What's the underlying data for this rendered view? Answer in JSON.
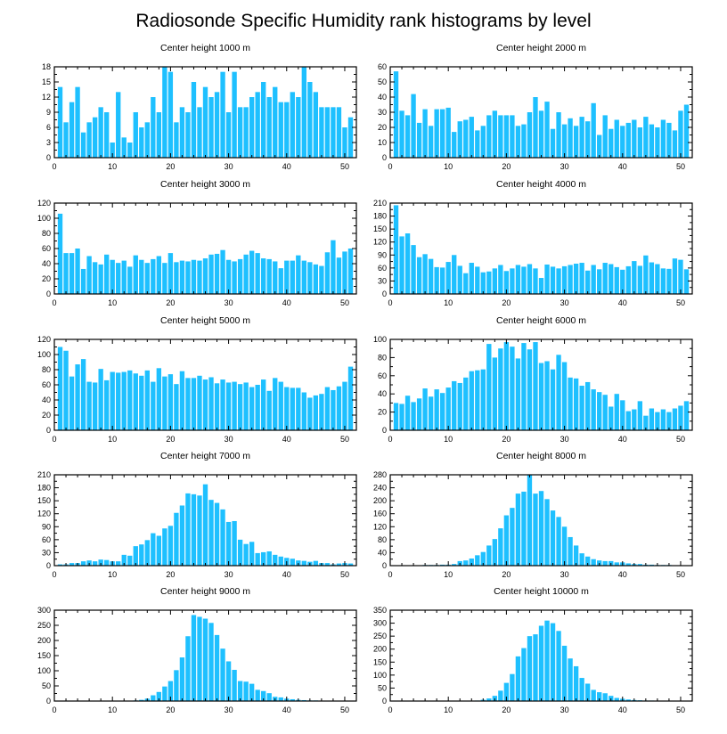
{
  "title": "Radiosonde Specific Humidity rank histograms by level",
  "colors": {
    "bar": "#1ec0ff",
    "axis": "#000000",
    "background": "#ffffff"
  },
  "chart_data": [
    {
      "type": "bar",
      "title": "Center height 1000 m",
      "xlim": [
        0,
        52
      ],
      "ylim": [
        0,
        18
      ],
      "xticks": [
        0,
        10,
        20,
        30,
        40,
        50
      ],
      "yticks": [
        0,
        3,
        6,
        9,
        12,
        15,
        18
      ],
      "categories": [
        1,
        2,
        3,
        4,
        5,
        6,
        7,
        8,
        9,
        10,
        11,
        12,
        13,
        14,
        15,
        16,
        17,
        18,
        19,
        20,
        21,
        22,
        23,
        24,
        25,
        26,
        27,
        28,
        29,
        30,
        31,
        32,
        33,
        34,
        35,
        36,
        37,
        38,
        39,
        40,
        41,
        42,
        43,
        44,
        45,
        46,
        47,
        48,
        49,
        50,
        51
      ],
      "values": [
        14,
        7,
        11,
        14,
        5,
        7,
        8,
        10,
        9,
        3,
        13,
        4,
        3,
        9,
        6,
        7,
        12,
        9,
        18,
        17,
        7,
        10,
        9,
        15,
        10,
        14,
        12,
        13,
        17,
        9,
        17,
        10,
        10,
        12,
        13,
        15,
        12,
        14,
        11,
        11,
        13,
        12,
        18,
        15,
        13,
        10,
        10,
        10,
        10,
        6,
        8
      ]
    },
    {
      "type": "bar",
      "title": "Center height 2000 m",
      "xlim": [
        0,
        52
      ],
      "ylim": [
        0,
        60
      ],
      "xticks": [
        0,
        10,
        20,
        30,
        40,
        50
      ],
      "yticks": [
        0,
        10,
        20,
        30,
        40,
        50,
        60
      ],
      "categories": [
        1,
        2,
        3,
        4,
        5,
        6,
        7,
        8,
        9,
        10,
        11,
        12,
        13,
        14,
        15,
        16,
        17,
        18,
        19,
        20,
        21,
        22,
        23,
        24,
        25,
        26,
        27,
        28,
        29,
        30,
        31,
        32,
        33,
        34,
        35,
        36,
        37,
        38,
        39,
        40,
        41,
        42,
        43,
        44,
        45,
        46,
        47,
        48,
        49,
        50,
        51
      ],
      "values": [
        57,
        31,
        28,
        42,
        23,
        32,
        21,
        32,
        32,
        33,
        17,
        24,
        25,
        27,
        18,
        21,
        28,
        31,
        28,
        28,
        28,
        21,
        22,
        30,
        40,
        31,
        37,
        19,
        30,
        22,
        26,
        21,
        27,
        24,
        36,
        15,
        28,
        19,
        25,
        21,
        23,
        25,
        20,
        27,
        22,
        20,
        25,
        23,
        18,
        31,
        35
      ]
    },
    {
      "type": "bar",
      "title": "Center height 3000 m",
      "xlim": [
        0,
        52
      ],
      "ylim": [
        0,
        120
      ],
      "xticks": [
        0,
        10,
        20,
        30,
        40,
        50
      ],
      "yticks": [
        0,
        20,
        40,
        60,
        80,
        100,
        120
      ],
      "categories": [
        1,
        2,
        3,
        4,
        5,
        6,
        7,
        8,
        9,
        10,
        11,
        12,
        13,
        14,
        15,
        16,
        17,
        18,
        19,
        20,
        21,
        22,
        23,
        24,
        25,
        26,
        27,
        28,
        29,
        30,
        31,
        32,
        33,
        34,
        35,
        36,
        37,
        38,
        39,
        40,
        41,
        42,
        43,
        44,
        45,
        46,
        47,
        48,
        49,
        50,
        51
      ],
      "values": [
        106,
        54,
        54,
        60,
        33,
        50,
        42,
        39,
        52,
        45,
        41,
        44,
        36,
        51,
        45,
        41,
        46,
        50,
        41,
        54,
        42,
        44,
        43,
        45,
        44,
        47,
        52,
        53,
        58,
        45,
        43,
        46,
        52,
        57,
        54,
        47,
        46,
        43,
        34,
        44,
        44,
        51,
        44,
        42,
        39,
        37,
        55,
        71,
        48,
        56,
        60
      ]
    },
    {
      "type": "bar",
      "title": "Center height 4000 m",
      "xlim": [
        0,
        52
      ],
      "ylim": [
        0,
        210
      ],
      "xticks": [
        0,
        10,
        20,
        30,
        40,
        50
      ],
      "yticks": [
        0,
        30,
        60,
        90,
        120,
        150,
        180,
        210
      ],
      "categories": [
        1,
        2,
        3,
        4,
        5,
        6,
        7,
        8,
        9,
        10,
        11,
        12,
        13,
        14,
        15,
        16,
        17,
        18,
        19,
        20,
        21,
        22,
        23,
        24,
        25,
        26,
        27,
        28,
        29,
        30,
        31,
        32,
        33,
        34,
        35,
        36,
        37,
        38,
        39,
        40,
        41,
        42,
        43,
        44,
        45,
        46,
        47,
        48,
        49,
        50,
        51
      ],
      "values": [
        205,
        133,
        140,
        113,
        85,
        92,
        81,
        62,
        61,
        74,
        90,
        65,
        48,
        72,
        63,
        50,
        52,
        59,
        67,
        53,
        59,
        67,
        63,
        69,
        59,
        37,
        68,
        63,
        59,
        64,
        67,
        70,
        72,
        54,
        67,
        57,
        72,
        69,
        62,
        56,
        64,
        76,
        65,
        89,
        73,
        69,
        59,
        58,
        82,
        79,
        57
      ]
    },
    {
      "type": "bar",
      "title": "Center height 5000 m",
      "xlim": [
        0,
        52
      ],
      "ylim": [
        0,
        120
      ],
      "xticks": [
        0,
        10,
        20,
        30,
        40,
        50
      ],
      "yticks": [
        0,
        20,
        40,
        60,
        80,
        100,
        120
      ],
      "categories": [
        1,
        2,
        3,
        4,
        5,
        6,
        7,
        8,
        9,
        10,
        11,
        12,
        13,
        14,
        15,
        16,
        17,
        18,
        19,
        20,
        21,
        22,
        23,
        24,
        25,
        26,
        27,
        28,
        29,
        30,
        31,
        32,
        33,
        34,
        35,
        36,
        37,
        38,
        39,
        40,
        41,
        42,
        43,
        44,
        45,
        46,
        47,
        48,
        49,
        50,
        51
      ],
      "values": [
        110,
        105,
        71,
        87,
        94,
        64,
        63,
        81,
        66,
        77,
        76,
        77,
        79,
        75,
        72,
        79,
        64,
        82,
        71,
        74,
        61,
        78,
        69,
        69,
        72,
        67,
        70,
        62,
        67,
        63,
        64,
        61,
        63,
        57,
        60,
        67,
        52,
        69,
        64,
        57,
        56,
        56,
        50,
        43,
        46,
        48,
        57,
        53,
        58,
        64,
        84
      ]
    },
    {
      "type": "bar",
      "title": "Center height 6000 m",
      "xlim": [
        0,
        52
      ],
      "ylim": [
        0,
        100
      ],
      "xticks": [
        0,
        10,
        20,
        30,
        40,
        50
      ],
      "yticks": [
        0,
        20,
        40,
        60,
        80,
        100
      ],
      "categories": [
        1,
        2,
        3,
        4,
        5,
        6,
        7,
        8,
        9,
        10,
        11,
        12,
        13,
        14,
        15,
        16,
        17,
        18,
        19,
        20,
        21,
        22,
        23,
        24,
        25,
        26,
        27,
        28,
        29,
        30,
        31,
        32,
        33,
        34,
        35,
        36,
        37,
        38,
        39,
        40,
        41,
        42,
        43,
        44,
        45,
        46,
        47,
        48,
        49,
        50,
        51
      ],
      "values": [
        30,
        29,
        38,
        31,
        35,
        46,
        37,
        45,
        41,
        47,
        54,
        52,
        58,
        65,
        66,
        67,
        95,
        80,
        90,
        97,
        92,
        79,
        96,
        89,
        97,
        74,
        76,
        67,
        83,
        75,
        58,
        57,
        49,
        53,
        45,
        42,
        39,
        26,
        40,
        33,
        21,
        23,
        32,
        16,
        24,
        20,
        23,
        20,
        24,
        27,
        32
      ]
    },
    {
      "type": "bar",
      "title": "Center height 7000 m",
      "xlim": [
        0,
        52
      ],
      "ylim": [
        0,
        210
      ],
      "xticks": [
        0,
        10,
        20,
        30,
        40,
        50
      ],
      "yticks": [
        0,
        30,
        60,
        90,
        120,
        150,
        180,
        210
      ],
      "categories": [
        1,
        2,
        3,
        4,
        5,
        6,
        7,
        8,
        9,
        10,
        11,
        12,
        13,
        14,
        15,
        16,
        17,
        18,
        19,
        20,
        21,
        22,
        23,
        24,
        25,
        26,
        27,
        28,
        29,
        30,
        31,
        32,
        33,
        34,
        35,
        36,
        37,
        38,
        39,
        40,
        41,
        42,
        43,
        44,
        45,
        46,
        47,
        48,
        49,
        50,
        51
      ],
      "values": [
        3,
        3,
        6,
        6,
        10,
        12,
        10,
        14,
        13,
        10,
        10,
        25,
        23,
        45,
        49,
        59,
        75,
        69,
        86,
        92,
        122,
        139,
        167,
        165,
        162,
        188,
        152,
        145,
        130,
        101,
        103,
        60,
        50,
        55,
        29,
        31,
        33,
        25,
        21,
        18,
        16,
        12,
        11,
        9,
        11,
        6,
        6,
        3,
        5,
        6,
        5
      ]
    },
    {
      "type": "bar",
      "title": "Center height 8000 m",
      "xlim": [
        0,
        52
      ],
      "ylim": [
        0,
        280
      ],
      "xticks": [
        0,
        10,
        20,
        30,
        40,
        50
      ],
      "yticks": [
        0,
        40,
        80,
        120,
        160,
        200,
        240,
        280
      ],
      "categories": [
        1,
        2,
        3,
        4,
        5,
        6,
        7,
        8,
        9,
        10,
        11,
        12,
        13,
        14,
        15,
        16,
        17,
        18,
        19,
        20,
        21,
        22,
        23,
        24,
        25,
        26,
        27,
        28,
        29,
        30,
        31,
        32,
        33,
        34,
        35,
        36,
        37,
        38,
        39,
        40,
        41,
        42,
        43,
        44,
        45,
        46,
        47,
        48,
        49,
        50,
        51
      ],
      "values": [
        0,
        1,
        1,
        1,
        1,
        2,
        2,
        2,
        3,
        3,
        5,
        14,
        16,
        22,
        32,
        42,
        62,
        82,
        115,
        155,
        178,
        222,
        228,
        280,
        222,
        230,
        205,
        170,
        150,
        120,
        88,
        62,
        38,
        28,
        20,
        16,
        14,
        14,
        10,
        10,
        7,
        5,
        5,
        3,
        3,
        2,
        2,
        2,
        1,
        0,
        1
      ]
    },
    {
      "type": "bar",
      "title": "Center height 9000 m",
      "xlim": [
        0,
        52
      ],
      "ylim": [
        0,
        300
      ],
      "xticks": [
        0,
        10,
        20,
        30,
        40,
        50
      ],
      "yticks": [
        0,
        50,
        100,
        150,
        200,
        250,
        300
      ],
      "categories": [
        1,
        2,
        3,
        4,
        5,
        6,
        7,
        8,
        9,
        10,
        11,
        12,
        13,
        14,
        15,
        16,
        17,
        18,
        19,
        20,
        21,
        22,
        23,
        24,
        25,
        26,
        27,
        28,
        29,
        30,
        31,
        32,
        33,
        34,
        35,
        36,
        37,
        38,
        39,
        40,
        41,
        42,
        43,
        44,
        45,
        46,
        47,
        48,
        49,
        50,
        51
      ],
      "values": [
        0,
        0,
        0,
        0,
        0,
        0,
        0,
        0,
        0,
        0,
        0,
        0,
        1,
        2,
        4,
        8,
        19,
        30,
        48,
        66,
        102,
        144,
        214,
        284,
        278,
        272,
        258,
        218,
        173,
        131,
        103,
        66,
        64,
        57,
        37,
        33,
        26,
        14,
        12,
        8,
        6,
        4,
        3,
        2,
        2,
        1,
        1,
        1,
        0,
        0,
        0
      ]
    },
    {
      "type": "bar",
      "title": "Center height 10000 m",
      "xlim": [
        0,
        52
      ],
      "ylim": [
        0,
        350
      ],
      "xticks": [
        0,
        10,
        20,
        30,
        40,
        50
      ],
      "yticks": [
        0,
        50,
        100,
        150,
        200,
        250,
        300,
        350
      ],
      "categories": [
        1,
        2,
        3,
        4,
        5,
        6,
        7,
        8,
        9,
        10,
        11,
        12,
        13,
        14,
        15,
        16,
        17,
        18,
        19,
        20,
        21,
        22,
        23,
        24,
        25,
        26,
        27,
        28,
        29,
        30,
        31,
        32,
        33,
        34,
        35,
        36,
        37,
        38,
        39,
        40,
        41,
        42,
        43,
        44,
        45,
        46,
        47,
        48,
        49,
        50,
        51
      ],
      "values": [
        0,
        0,
        0,
        0,
        0,
        0,
        0,
        0,
        0,
        0,
        0,
        0,
        0,
        1,
        2,
        5,
        10,
        20,
        40,
        70,
        104,
        172,
        204,
        250,
        257,
        290,
        310,
        300,
        270,
        213,
        164,
        134,
        89,
        67,
        43,
        34,
        30,
        20,
        12,
        9,
        6,
        4,
        3,
        2,
        2,
        1,
        1,
        1,
        0,
        0,
        0
      ]
    }
  ]
}
